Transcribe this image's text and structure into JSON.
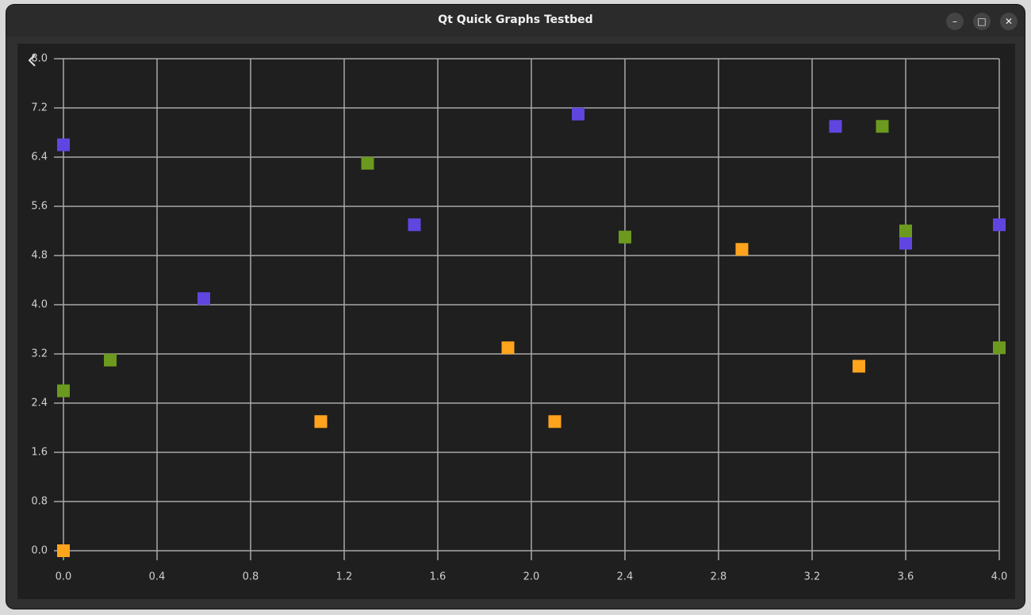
{
  "window": {
    "title": "Qt Quick Graphs Testbed"
  },
  "chart_data": {
    "type": "scatter",
    "xlim": [
      0,
      4
    ],
    "ylim": [
      0,
      8
    ],
    "xticks": [
      {
        "value": 0,
        "label": "0.0"
      },
      0.4,
      0.8,
      1.2,
      1.6,
      {
        "value": 2,
        "label": "2.0"
      },
      2.4,
      2.8,
      3.2,
      3.6,
      {
        "value": 4,
        "label": "4.0"
      }
    ],
    "yticks": [
      {
        "value": 0,
        "label": "0.0"
      },
      0.8,
      1.6,
      2.4,
      3.2,
      {
        "value": 4,
        "label": "4.0"
      },
      4.8,
      5.6,
      6.4,
      7.2,
      {
        "value": 8,
        "label": "8.0"
      }
    ],
    "grid": true,
    "series": [
      {
        "color": "#6045e0",
        "x": [
          0,
          0.6,
          1.5,
          2.2,
          3.3,
          3.6,
          4.0
        ],
        "values": [
          6.6,
          4.1,
          5.3,
          7.1,
          6.9,
          5.0,
          5.3
        ]
      },
      {
        "color": "#6c9a1e",
        "x": [
          0,
          0.2,
          1.3,
          2.4,
          3.5,
          3.6,
          4.0
        ],
        "values": [
          2.6,
          3.1,
          6.3,
          5.1,
          6.9,
          5.2,
          3.3
        ]
      },
      {
        "color": "#ffa41c",
        "x": [
          0,
          1.1,
          1.9,
          2.1,
          2.9,
          3.4
        ],
        "values": [
          0,
          2.1,
          3.3,
          2.1,
          4.9,
          3.0
        ]
      }
    ]
  }
}
